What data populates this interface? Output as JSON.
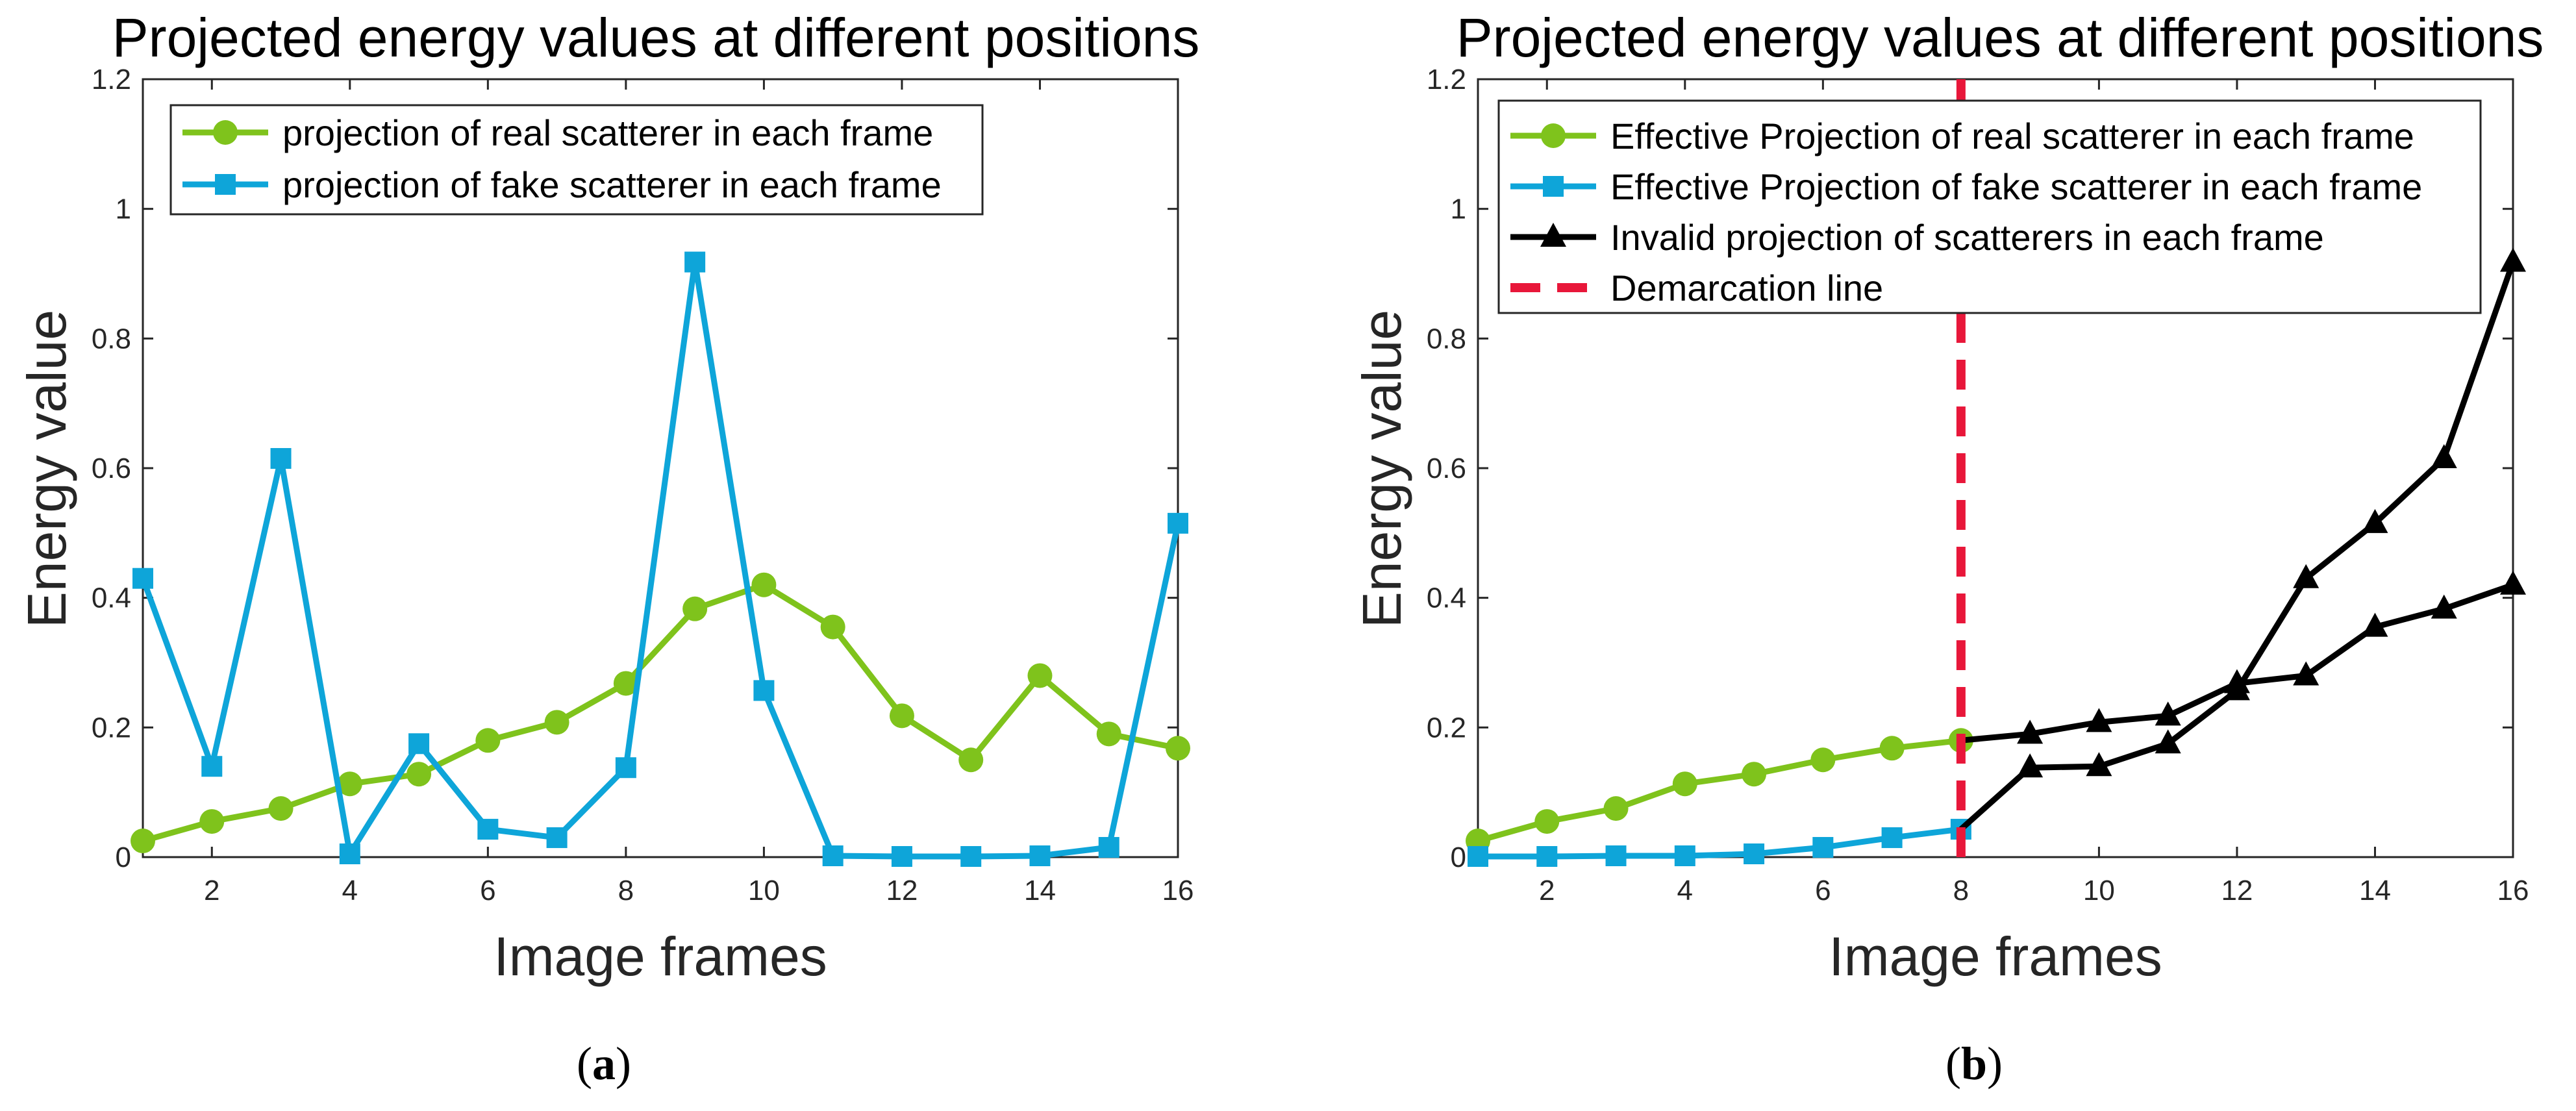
{
  "colors": {
    "green": "#7fc31c",
    "blue": "#0ea5d9",
    "black": "#000000",
    "red": "#e8173a"
  },
  "chart_data": [
    {
      "panel": "a",
      "type": "line",
      "title": "Projected energy values at different positions",
      "xlabel": "Image frames",
      "ylabel": "Energy value",
      "xlim": [
        1,
        16
      ],
      "ylim": [
        0,
        1.2
      ],
      "xticks": [
        2,
        4,
        6,
        8,
        10,
        12,
        14,
        16
      ],
      "xtick_labels": [
        "2",
        "4",
        "6",
        "8",
        "10",
        "12",
        "14",
        "16"
      ],
      "yticks": [
        0,
        0.2,
        0.4,
        0.6,
        0.8,
        1,
        1.2
      ],
      "ytick_labels": [
        "0",
        "0.2",
        "0.4",
        "0.6",
        "0.8",
        "1",
        "1.2"
      ],
      "caption": "(a)",
      "legend": "top-left",
      "series": [
        {
          "name": "projection of real scatterer in each frame",
          "marker": "circle",
          "color": "green",
          "x": [
            1,
            2,
            3,
            4,
            5,
            6,
            7,
            8,
            9,
            10,
            11,
            12,
            13,
            14,
            15,
            16
          ],
          "values": [
            0.025,
            0.055,
            0.075,
            0.113,
            0.128,
            0.18,
            0.208,
            0.268,
            0.383,
            0.42,
            0.355,
            0.218,
            0.15,
            0.28,
            0.19,
            0.168
          ]
        },
        {
          "name": "projection of fake scatterer in each frame",
          "marker": "square",
          "color": "blue",
          "x": [
            1,
            2,
            3,
            4,
            5,
            6,
            7,
            8,
            9,
            10,
            11,
            12,
            13,
            14,
            15,
            16
          ],
          "values": [
            0.43,
            0.14,
            0.615,
            0.005,
            0.175,
            0.043,
            0.03,
            0.138,
            0.918,
            0.257,
            0.002,
            0.001,
            0.001,
            0.002,
            0.015,
            0.515
          ]
        }
      ]
    },
    {
      "panel": "b",
      "type": "line",
      "title": "Projected energy values at different positions",
      "xlabel": "Image frames",
      "ylabel": "Energy value",
      "xlim": [
        1,
        16
      ],
      "ylim": [
        0,
        1.2
      ],
      "xticks": [
        2,
        4,
        6,
        8,
        10,
        12,
        14,
        16
      ],
      "xtick_labels": [
        "2",
        "4",
        "6",
        "8",
        "10",
        "12",
        "14",
        "16"
      ],
      "yticks": [
        0,
        0.2,
        0.4,
        0.6,
        0.8,
        1,
        1.2
      ],
      "ytick_labels": [
        "0",
        "0.2",
        "0.4",
        "0.6",
        "0.8",
        "1",
        "1.2"
      ],
      "caption": "(b)",
      "legend": "top-left",
      "demarcation_x": 8,
      "series": [
        {
          "name": "Effective Projection of real scatterer in each frame",
          "marker": "circle",
          "color": "green",
          "x": [
            1,
            2,
            3,
            4,
            5,
            6,
            7,
            8
          ],
          "values": [
            0.025,
            0.055,
            0.075,
            0.113,
            0.128,
            0.15,
            0.168,
            0.18
          ]
        },
        {
          "name": "Effective Projection of fake scatterer in each frame",
          "marker": "square",
          "color": "blue",
          "x": [
            1,
            2,
            3,
            4,
            5,
            6,
            7,
            8
          ],
          "values": [
            0.001,
            0.001,
            0.002,
            0.002,
            0.005,
            0.015,
            0.03,
            0.043
          ]
        },
        {
          "name": "Invalid projection of scatterers in each frame",
          "marker": "triangle",
          "color": "black",
          "segments": [
            {
              "x": [
                8,
                9,
                10,
                11,
                12,
                13,
                14,
                15,
                16
              ],
              "values": [
                0.18,
                0.19,
                0.208,
                0.218,
                0.268,
                0.28,
                0.355,
                0.383,
                0.42
              ]
            },
            {
              "x": [
                8,
                9,
                10,
                11,
                12,
                13,
                14,
                15,
                16
              ],
              "values": [
                0.043,
                0.138,
                0.14,
                0.175,
                0.257,
                0.43,
                0.515,
                0.615,
                0.918
              ]
            }
          ]
        },
        {
          "name": "Demarcation line",
          "marker": "none",
          "color": "red",
          "style": "dashed"
        }
      ]
    }
  ]
}
